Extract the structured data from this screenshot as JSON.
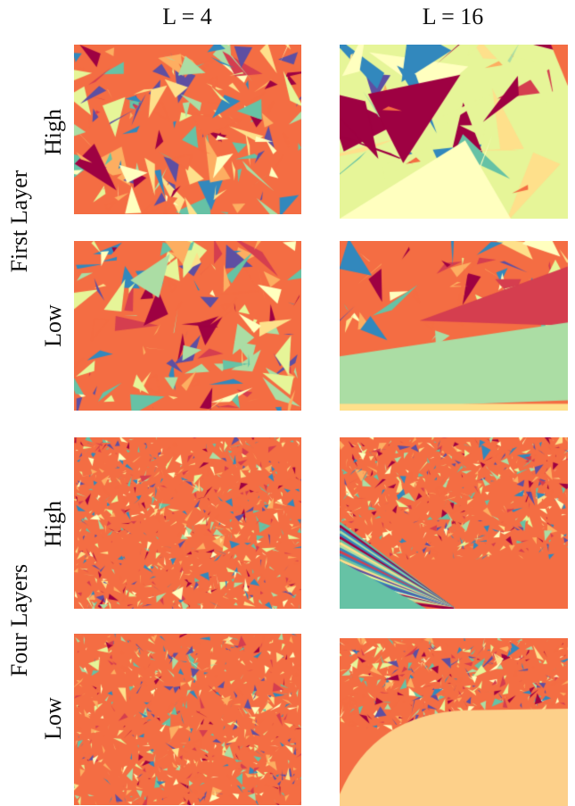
{
  "columns": [
    "L = 4",
    "L = 16"
  ],
  "groups": [
    {
      "label": "First Layer",
      "rows": [
        "High",
        "Low"
      ]
    },
    {
      "label": "Four Layers",
      "rows": [
        "High",
        "Low"
      ]
    }
  ],
  "palette": [
    "#9e0142",
    "#d53e4f",
    "#f46d43",
    "#fdae61",
    "#fee08b",
    "#ffffbf",
    "#e6f598",
    "#abdda4",
    "#66c2a5",
    "#3288bd",
    "#5e4fa2"
  ]
}
